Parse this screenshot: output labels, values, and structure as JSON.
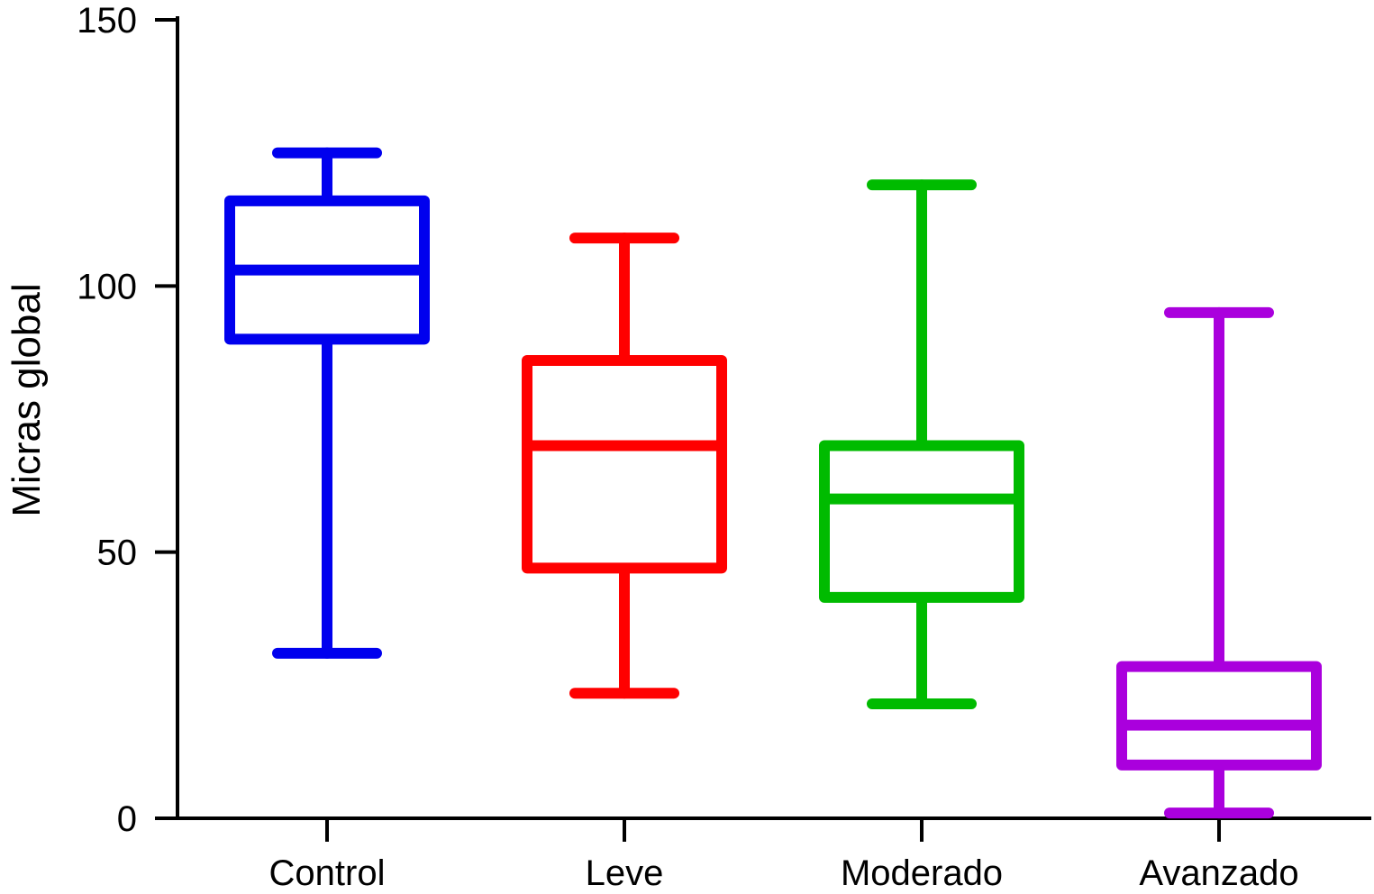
{
  "chart_data": {
    "type": "box",
    "title": "",
    "xlabel": "",
    "ylabel": "Micras global",
    "ylim": [
      0,
      150
    ],
    "yticks": [
      "0",
      "50",
      "100",
      "150"
    ],
    "grid": false,
    "legend": "none",
    "categories": [
      "Control",
      "Leve",
      "Moderado",
      "Avanzado"
    ],
    "series": [
      {
        "category": "Control",
        "color": "#0000ee",
        "min": 31,
        "q1": 90,
        "median": 103,
        "q3": 116,
        "max": 125
      },
      {
        "category": "Leve",
        "color": "#ff0000",
        "min": 23.5,
        "q1": 47,
        "median": 70,
        "q3": 86,
        "max": 109
      },
      {
        "category": "Moderado",
        "color": "#00bb00",
        "min": 21.5,
        "q1": 41.5,
        "median": 60,
        "q3": 70,
        "max": 119
      },
      {
        "category": "Avanzado",
        "color": "#aa00dd",
        "min": 1,
        "q1": 10,
        "median": 17.5,
        "q3": 28.5,
        "max": 95
      }
    ]
  }
}
